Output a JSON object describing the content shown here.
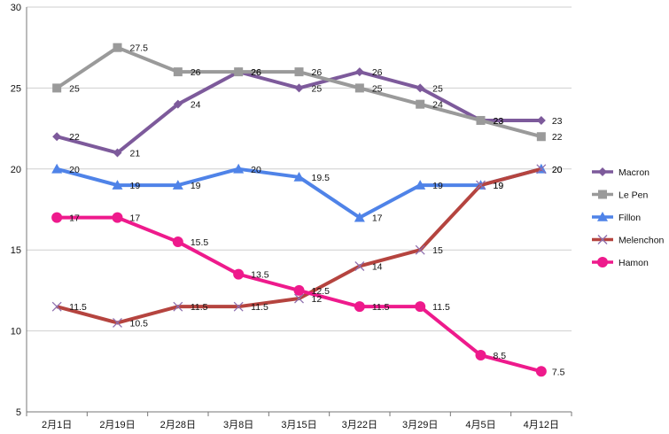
{
  "chart_data": {
    "type": "line",
    "categories": [
      "2月1日",
      "2月19日",
      "2月28日",
      "3月8日",
      "3月15日",
      "3月22日",
      "3月29日",
      "4月5日",
      "4月12日"
    ],
    "ylim": [
      5,
      30
    ],
    "y_ticks": [
      "5",
      "10",
      "15",
      "20",
      "25",
      "30"
    ],
    "grid": "horizontal",
    "legend_position": "right",
    "series": [
      {
        "name": "Macron",
        "color": "#7d5a9b",
        "marker": "diamond",
        "values": [
          22,
          21,
          24,
          26,
          25,
          26,
          25,
          23,
          23
        ],
        "labels": [
          "22",
          "21",
          "24",
          "26",
          "25",
          "26",
          "25",
          "23",
          "23"
        ]
      },
      {
        "name": "Le Pen",
        "color": "#9a9a9a",
        "marker": "square",
        "values": [
          25,
          27.5,
          26,
          26,
          26,
          25,
          24,
          23,
          22
        ],
        "labels": [
          "25",
          "27.5",
          "26",
          "26",
          "26",
          "25",
          "24",
          "23",
          "22"
        ]
      },
      {
        "name": "Fillon",
        "color": "#4f83e8",
        "marker": "triangle",
        "values": [
          20,
          19,
          19,
          20,
          19.5,
          17,
          19,
          19,
          20
        ],
        "labels": [
          "20",
          "19",
          "19",
          "20",
          "19.5",
          "17",
          "19",
          "19",
          "20"
        ]
      },
      {
        "name": "Melenchon",
        "color": "#b5443f",
        "marker": "x",
        "values": [
          11.5,
          10.5,
          11.5,
          11.5,
          12,
          14,
          15,
          19,
          20
        ],
        "labels": [
          "11.5",
          "10.5",
          "11.5",
          "11.5",
          "12",
          "14",
          "15",
          "19",
          "20"
        ]
      },
      {
        "name": "Hamon",
        "color": "#ee1a8c",
        "marker": "circle",
        "values": [
          17,
          17,
          15.5,
          13.5,
          12.5,
          11.5,
          11.5,
          8.5,
          7.5
        ],
        "labels": [
          "17",
          "17",
          "15.5",
          "13.5",
          "12.5",
          "11.5",
          "11.5",
          "8.5",
          "7.5"
        ]
      }
    ]
  }
}
